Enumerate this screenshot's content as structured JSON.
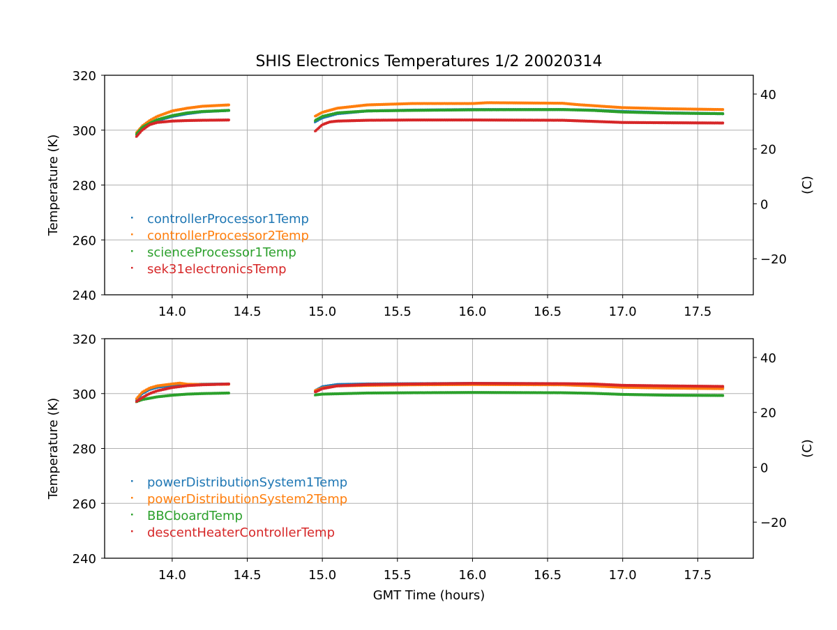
{
  "title": "SHIS Electronics Temperatures 1/2 20020314",
  "colors": {
    "blue": "#1f77b4",
    "orange": "#ff7f0e",
    "green": "#2ca02c",
    "red": "#d62728"
  },
  "chart_data": [
    {
      "type": "scatter",
      "xlabel": "",
      "ylabel": "Temperature (K)",
      "y2label": "(C)",
      "xlim": [
        13.55,
        17.87
      ],
      "ylim": [
        240,
        320
      ],
      "xticks": [
        14.0,
        14.5,
        15.0,
        15.5,
        16.0,
        16.5,
        17.0,
        17.5
      ],
      "yticks": [
        240,
        260,
        280,
        300,
        320
      ],
      "y2ticks": [
        -20,
        0,
        20,
        40
      ],
      "grid": true,
      "legend": "lower-left",
      "segments": [
        [
          13.76,
          14.38
        ],
        [
          14.95,
          17.67
        ]
      ],
      "series": [
        {
          "name": "controllerProcessor1Temp",
          "color": "#1f77b4",
          "x": [
            13.76,
            13.8,
            13.85,
            13.9,
            14.0,
            14.1,
            14.2,
            14.38,
            14.95,
            15.0,
            15.1,
            15.3,
            15.6,
            16.0,
            16.6,
            16.8,
            17.0,
            17.3,
            17.67
          ],
          "y": [
            298.5,
            300.5,
            302.0,
            303.5,
            305.0,
            306.0,
            306.7,
            307.2,
            303.0,
            304.5,
            306.0,
            307.0,
            307.3,
            307.5,
            307.5,
            307.3,
            306.8,
            306.3,
            306.0
          ]
        },
        {
          "name": "controllerProcessor2Temp",
          "color": "#ff7f0e",
          "x": [
            13.76,
            13.8,
            13.85,
            13.9,
            14.0,
            14.1,
            14.2,
            14.38,
            14.95,
            15.0,
            15.1,
            15.3,
            15.6,
            16.0,
            16.1,
            16.6,
            16.7,
            17.0,
            17.3,
            17.67
          ],
          "y": [
            299.0,
            301.5,
            303.5,
            305.0,
            307.0,
            308.0,
            308.7,
            309.2,
            305.0,
            306.5,
            308.0,
            309.2,
            309.7,
            309.7,
            310.0,
            309.8,
            309.3,
            308.2,
            307.8,
            307.5
          ]
        },
        {
          "name": "scienceProcessor1Temp",
          "color": "#2ca02c",
          "x": [
            13.76,
            13.8,
            13.85,
            13.9,
            14.0,
            14.1,
            14.2,
            14.38,
            14.95,
            15.0,
            15.1,
            15.3,
            15.6,
            16.0,
            16.6,
            16.8,
            17.0,
            17.3,
            17.67
          ],
          "y": [
            298.5,
            301.0,
            302.5,
            303.8,
            305.3,
            306.3,
            306.8,
            307.2,
            303.5,
            305.0,
            306.3,
            307.0,
            307.2,
            307.4,
            307.5,
            307.2,
            306.6,
            306.2,
            306.0
          ]
        },
        {
          "name": "sek31electronicsTemp",
          "color": "#d62728",
          "x": [
            13.76,
            13.8,
            13.85,
            13.9,
            14.0,
            14.1,
            14.2,
            14.38,
            14.95,
            15.0,
            15.05,
            15.1,
            15.3,
            15.6,
            16.0,
            16.6,
            16.8,
            17.0,
            17.3,
            17.67
          ],
          "y": [
            297.5,
            300.0,
            302.0,
            302.8,
            303.3,
            303.5,
            303.6,
            303.7,
            299.5,
            302.0,
            303.0,
            303.3,
            303.6,
            303.7,
            303.7,
            303.6,
            303.2,
            302.8,
            302.7,
            302.6
          ]
        }
      ]
    },
    {
      "type": "scatter",
      "xlabel": "GMT Time (hours)",
      "ylabel": "Temperature (K)",
      "y2label": "(C)",
      "xlim": [
        13.55,
        17.87
      ],
      "ylim": [
        240,
        320
      ],
      "xticks": [
        14.0,
        14.5,
        15.0,
        15.5,
        16.0,
        16.5,
        17.0,
        17.5
      ],
      "yticks": [
        240,
        260,
        280,
        300,
        320
      ],
      "y2ticks": [
        -20,
        0,
        20,
        40
      ],
      "grid": true,
      "legend": "lower-left",
      "segments": [
        [
          13.76,
          14.38
        ],
        [
          14.95,
          17.67
        ]
      ],
      "series": [
        {
          "name": "powerDistributionSystem1Temp",
          "color": "#1f77b4",
          "x": [
            13.76,
            13.8,
            13.85,
            13.9,
            14.0,
            14.1,
            14.2,
            14.38,
            14.95,
            15.0,
            15.1,
            15.3,
            15.6,
            16.0,
            16.6,
            16.8,
            17.0,
            17.3,
            17.67
          ],
          "y": [
            297.5,
            300.0,
            301.5,
            302.3,
            303.0,
            303.3,
            303.4,
            303.5,
            301.0,
            302.5,
            303.3,
            303.5,
            303.6,
            303.7,
            303.6,
            303.3,
            302.8,
            302.5,
            302.3
          ]
        },
        {
          "name": "powerDistributionSystem2Temp",
          "color": "#ff7f0e",
          "x": [
            13.76,
            13.8,
            13.85,
            13.9,
            14.0,
            14.05,
            14.1,
            14.2,
            14.38,
            14.95,
            15.0,
            15.1,
            15.3,
            15.6,
            16.0,
            16.6,
            16.8,
            17.0,
            17.3,
            17.67
          ],
          "y": [
            298.0,
            300.5,
            302.0,
            302.8,
            303.5,
            303.8,
            303.4,
            303.3,
            303.4,
            301.0,
            302.0,
            302.8,
            303.0,
            303.2,
            303.3,
            303.2,
            302.8,
            302.3,
            302.0,
            301.8
          ]
        },
        {
          "name": "BBCboardTemp",
          "color": "#2ca02c",
          "x": [
            13.76,
            13.8,
            13.9,
            14.0,
            14.1,
            14.2,
            14.38,
            14.95,
            15.0,
            15.3,
            15.6,
            16.0,
            16.6,
            16.8,
            17.0,
            17.3,
            17.67
          ],
          "y": [
            297.0,
            297.8,
            298.8,
            299.4,
            299.8,
            300.0,
            300.2,
            299.5,
            299.8,
            300.2,
            300.3,
            300.4,
            300.3,
            300.1,
            299.7,
            299.4,
            299.3
          ]
        },
        {
          "name": "descentHeaterControllerTemp",
          "color": "#d62728",
          "x": [
            13.76,
            13.8,
            13.85,
            13.9,
            14.0,
            14.1,
            14.2,
            14.38,
            14.95,
            15.0,
            15.1,
            15.3,
            15.6,
            16.0,
            16.6,
            16.8,
            17.0,
            17.3,
            17.67
          ],
          "y": [
            297.0,
            298.5,
            300.0,
            301.0,
            302.2,
            302.9,
            303.2,
            303.5,
            300.5,
            301.8,
            302.8,
            303.3,
            303.5,
            303.7,
            303.6,
            303.5,
            303.0,
            302.8,
            302.6
          ]
        }
      ]
    }
  ]
}
